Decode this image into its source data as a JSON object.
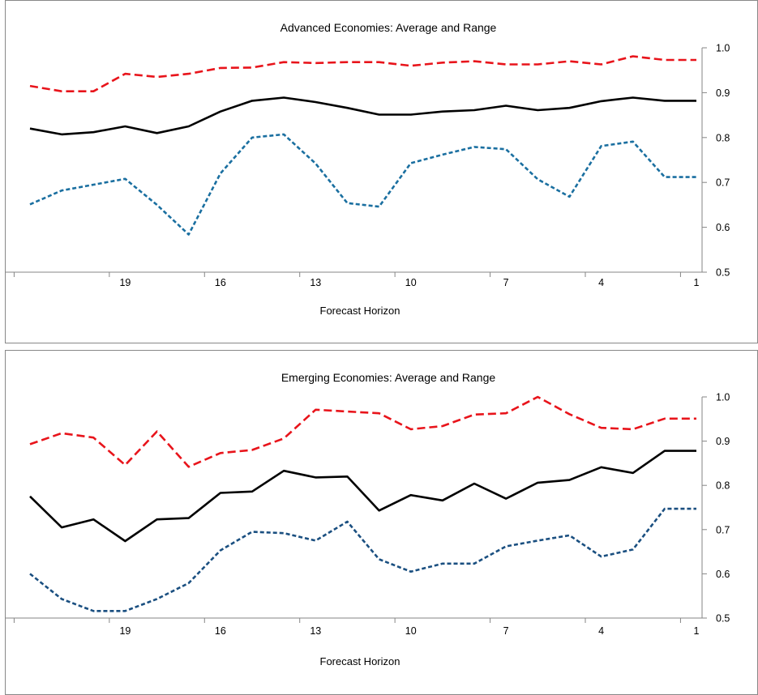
{
  "charts": [
    {
      "title": "Advanced Economies:  Average and Range",
      "xlabel": "Forecast Horizon",
      "x_tick_labels": [
        "19",
        "16",
        "13",
        "10",
        "7",
        "4",
        "1"
      ],
      "y_tick_labels": [
        "0.5",
        "0.6",
        "0.7",
        "0.8",
        "0.9",
        "1.0"
      ]
    },
    {
      "title": "Emerging Economies: Average and Range",
      "xlabel": "Forecast Horizon",
      "x_tick_labels": [
        "19",
        "16",
        "13",
        "10",
        "7",
        "4",
        "1"
      ],
      "y_tick_labels": [
        "0.5",
        "0.6",
        "0.7",
        "0.8",
        "0.9",
        "1.0"
      ]
    }
  ],
  "chart_data": [
    {
      "type": "line",
      "title": "Advanced Economies:  Average and Range",
      "xlabel": "Forecast Horizon",
      "ylabel": "",
      "x": [
        22,
        21,
        20,
        19,
        18,
        17,
        16,
        15,
        14,
        13,
        12,
        11,
        10,
        9,
        8,
        7,
        6,
        5,
        4,
        3,
        2,
        1
      ],
      "x_reversed": true,
      "xticks": [
        19,
        16,
        13,
        10,
        7,
        4,
        1
      ],
      "ylim": [
        0.5,
        1.0
      ],
      "yaxis_side": "right",
      "grid": false,
      "legend": "none",
      "series": [
        {
          "color": "#e8141b",
          "dash": "long-dash",
          "values": [
            0.915,
            0.903,
            0.903,
            0.942,
            0.935,
            0.942,
            0.955,
            0.956,
            0.968,
            0.966,
            0.968,
            0.968,
            0.96,
            0.967,
            0.97,
            0.963,
            0.963,
            0.97,
            0.963,
            0.981,
            0.973,
            0.973
          ]
        },
        {
          "color": "#000000",
          "dash": "solid",
          "values": [
            0.82,
            0.807,
            0.812,
            0.825,
            0.81,
            0.825,
            0.858,
            0.882,
            0.889,
            0.879,
            0.866,
            0.851,
            0.851,
            0.858,
            0.861,
            0.871,
            0.861,
            0.866,
            0.881,
            0.889,
            0.882,
            0.882
          ]
        },
        {
          "color": "#1a6fa0",
          "dash": "short-dash",
          "values": [
            0.651,
            0.682,
            0.695,
            0.708,
            0.65,
            0.584,
            0.72,
            0.8,
            0.807,
            0.742,
            0.654,
            0.646,
            0.743,
            0.762,
            0.779,
            0.774,
            0.707,
            0.668,
            0.781,
            0.791,
            0.712,
            0.712
          ]
        }
      ]
    },
    {
      "type": "line",
      "title": "Emerging Economies: Average and Range",
      "xlabel": "Forecast Horizon",
      "ylabel": "",
      "x": [
        22,
        21,
        20,
        19,
        18,
        17,
        16,
        15,
        14,
        13,
        12,
        11,
        10,
        9,
        8,
        7,
        6,
        5,
        4,
        3,
        2,
        1
      ],
      "x_reversed": true,
      "xticks": [
        19,
        16,
        13,
        10,
        7,
        4,
        1
      ],
      "ylim": [
        0.5,
        1.0
      ],
      "yaxis_side": "right",
      "grid": false,
      "legend": "none",
      "series": [
        {
          "color": "#e8141b",
          "dash": "long-dash",
          "values": [
            0.893,
            0.918,
            0.908,
            0.846,
            0.922,
            0.842,
            0.873,
            0.88,
            0.906,
            0.971,
            0.967,
            0.963,
            0.927,
            0.934,
            0.96,
            0.963,
            1.0,
            0.961,
            0.93,
            0.927,
            0.951,
            0.951
          ]
        },
        {
          "color": "#000000",
          "dash": "solid",
          "values": [
            0.775,
            0.705,
            0.723,
            0.674,
            0.723,
            0.726,
            0.783,
            0.786,
            0.833,
            0.818,
            0.82,
            0.743,
            0.778,
            0.766,
            0.804,
            0.77,
            0.806,
            0.812,
            0.841,
            0.828,
            0.878,
            0.878
          ]
        },
        {
          "color": "#1a4f80",
          "dash": "short-dash",
          "values": [
            0.6,
            0.543,
            0.516,
            0.516,
            0.543,
            0.579,
            0.653,
            0.695,
            0.692,
            0.675,
            0.718,
            0.633,
            0.605,
            0.623,
            0.623,
            0.662,
            0.675,
            0.687,
            0.639,
            0.655,
            0.747,
            0.747
          ]
        }
      ]
    }
  ]
}
